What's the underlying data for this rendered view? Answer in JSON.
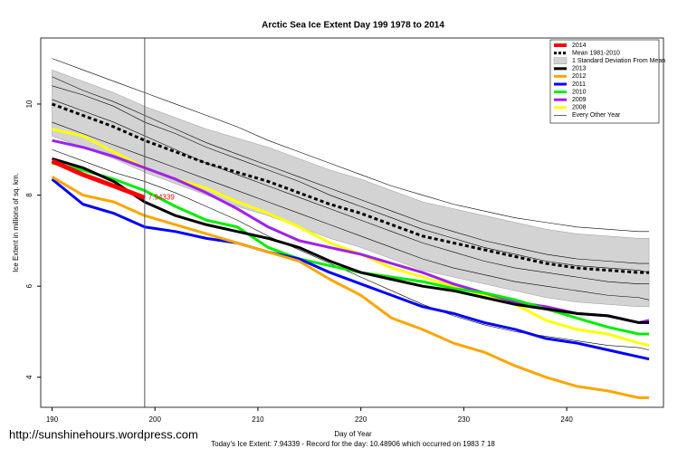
{
  "chart_data": {
    "type": "line",
    "title": "Arctic Sea Ice Extent Day 199 1978 to 2014",
    "x_label": "Day of Year",
    "y_label": "Ice Extent in millions of sq. km.",
    "caption": "Today's Ice Extent: 7.94339  - Record for the day: 10.48906 which occurred on 1983 7 18",
    "source_url": "http://sunshinehours.wordpress.com",
    "xlim": [
      188.9,
      249.4
    ],
    "ylim": [
      3.34,
      11.45
    ],
    "xticks": [
      190,
      200,
      210,
      220,
      230,
      240
    ],
    "yticks": [
      4,
      6,
      8,
      10
    ],
    "vline": 199,
    "x": [
      190,
      193,
      196,
      199,
      202,
      205,
      208,
      211,
      214,
      217,
      220,
      223,
      226,
      229,
      232,
      235,
      238,
      241,
      244,
      247,
      248
    ],
    "band": {
      "name": "1 Standard Deviation From Mean",
      "color": "#d3d3d3",
      "upper": [
        10.75,
        10.5,
        10.25,
        9.95,
        9.7,
        9.45,
        9.25,
        9.05,
        8.8,
        8.55,
        8.35,
        8.1,
        7.85,
        7.7,
        7.55,
        7.4,
        7.25,
        7.15,
        7.1,
        7.05,
        7.05
      ],
      "lower": [
        9.3,
        9.05,
        8.8,
        8.5,
        8.25,
        8.0,
        7.75,
        7.55,
        7.3,
        7.05,
        6.85,
        6.6,
        6.35,
        6.2,
        6.05,
        5.9,
        5.75,
        5.65,
        5.6,
        5.55,
        5.55
      ]
    },
    "other_years": {
      "name": "Every Other Year",
      "color": "#000000",
      "lines": [
        [
          11.0,
          10.75,
          10.5,
          10.25,
          10.0,
          9.75,
          9.5,
          9.2,
          8.95,
          8.7,
          8.45,
          8.2,
          8.0,
          7.8,
          7.65,
          7.5,
          7.4,
          7.3,
          7.25,
          7.2,
          7.2
        ],
        [
          10.6,
          10.3,
          10.05,
          9.75,
          9.45,
          9.15,
          8.9,
          8.65,
          8.4,
          8.15,
          7.9,
          7.65,
          7.4,
          7.2,
          7.0,
          6.85,
          6.7,
          6.6,
          6.55,
          6.5,
          6.5
        ],
        [
          10.1,
          9.85,
          9.6,
          9.3,
          9.0,
          8.7,
          8.45,
          8.2,
          7.95,
          7.7,
          7.45,
          7.2,
          6.95,
          6.75,
          6.55,
          6.4,
          6.3,
          6.2,
          6.1,
          6.05,
          6.05
        ],
        [
          9.6,
          9.35,
          9.1,
          8.85,
          8.6,
          8.35,
          8.1,
          7.85,
          7.6,
          7.35,
          7.1,
          6.85,
          6.6,
          6.4,
          6.25,
          6.1,
          6.0,
          5.9,
          5.8,
          5.75,
          5.7
        ],
        [
          9.0,
          8.75,
          8.5,
          8.3,
          8.05,
          7.75,
          7.45,
          7.1,
          6.8,
          6.5,
          6.2,
          5.9,
          5.6,
          5.35,
          5.15,
          5.0,
          4.9,
          4.8,
          4.7,
          4.65,
          4.6
        ],
        [
          10.4,
          10.2,
          9.95,
          9.6,
          9.35,
          9.05,
          8.8,
          8.55,
          8.3,
          8.0,
          7.75,
          7.5,
          7.25,
          7.05,
          6.85,
          6.7,
          6.55,
          6.45,
          6.4,
          6.35,
          6.3
        ]
      ]
    },
    "series": [
      {
        "name": "2014",
        "color": "#ff0000",
        "width": 5,
        "values": [
          8.75,
          8.45,
          8.2,
          7.94339,
          null,
          null,
          null,
          null,
          null,
          null,
          null,
          null,
          null,
          null,
          null,
          null,
          null,
          null,
          null,
          null,
          null
        ],
        "value_labels": [
          null,
          null,
          null,
          "7.94339",
          null,
          null,
          null,
          null,
          null,
          null,
          null,
          null,
          null,
          null,
          null,
          null,
          null,
          null,
          null,
          null,
          null
        ]
      },
      {
        "name": "Mean 1981-2010",
        "color": "#000000",
        "width": 3,
        "dash": true,
        "values": [
          10.0,
          9.75,
          9.5,
          9.2,
          8.95,
          8.7,
          8.5,
          8.3,
          8.05,
          7.8,
          7.6,
          7.35,
          7.1,
          6.95,
          6.8,
          6.65,
          6.5,
          6.4,
          6.35,
          6.3,
          6.3
        ]
      },
      {
        "name": "2013",
        "color": "#000000",
        "width": 3,
        "values": [
          8.8,
          8.6,
          8.3,
          7.85,
          7.55,
          7.35,
          7.2,
          7.05,
          6.85,
          6.55,
          6.3,
          6.15,
          6.0,
          5.9,
          5.75,
          5.6,
          5.5,
          5.4,
          5.35,
          5.2,
          5.2
        ]
      },
      {
        "name": "2012",
        "color": "#ffa500",
        "width": 3,
        "values": [
          8.4,
          8.0,
          7.85,
          7.55,
          7.35,
          7.15,
          6.95,
          6.75,
          6.55,
          6.15,
          5.8,
          5.3,
          5.05,
          4.75,
          4.55,
          4.25,
          4.0,
          3.8,
          3.7,
          3.55,
          3.55
        ]
      },
      {
        "name": "2011",
        "color": "#0000ff",
        "width": 3,
        "values": [
          8.35,
          7.8,
          7.6,
          7.3,
          7.2,
          7.05,
          6.95,
          6.75,
          6.6,
          6.3,
          6.05,
          5.8,
          5.55,
          5.4,
          5.2,
          5.05,
          4.85,
          4.75,
          4.6,
          4.45,
          4.4
        ]
      },
      {
        "name": "2010",
        "color": "#00ee00",
        "width": 3,
        "values": [
          8.7,
          8.55,
          8.35,
          8.1,
          7.75,
          7.45,
          7.3,
          6.85,
          6.6,
          6.45,
          6.3,
          6.2,
          6.1,
          5.95,
          5.85,
          5.7,
          5.5,
          5.3,
          5.1,
          4.95,
          4.95
        ]
      },
      {
        "name": "2009",
        "color": "#a020f0",
        "width": 3,
        "values": [
          9.2,
          9.05,
          8.85,
          8.6,
          8.35,
          8.05,
          7.7,
          7.3,
          7.0,
          6.85,
          6.7,
          6.5,
          6.3,
          6.05,
          5.85,
          5.65,
          5.55,
          5.4,
          5.35,
          5.2,
          5.25
        ]
      },
      {
        "name": "2008",
        "color": "#ffff00",
        "width": 3,
        "values": [
          9.45,
          9.3,
          8.95,
          8.6,
          8.35,
          8.15,
          7.85,
          7.6,
          7.3,
          6.95,
          6.7,
          6.4,
          6.2,
          6.0,
          5.8,
          5.6,
          5.25,
          5.05,
          4.95,
          4.75,
          4.7
        ]
      }
    ]
  }
}
